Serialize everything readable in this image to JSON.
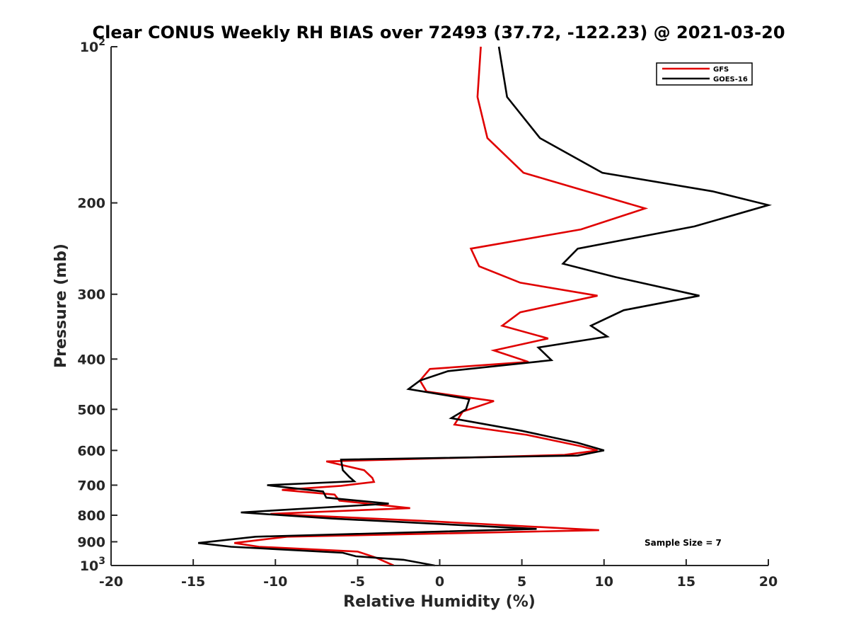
{
  "chart_data": {
    "type": "line",
    "title": "Clear CONUS Weekly RH BIAS over 72493 (37.72, -122.23) @ 2021-03-20",
    "xlabel": "Relative Humidity (%)",
    "ylabel": "Pressure (mb)",
    "xlim": [
      -20,
      20
    ],
    "ylim": [
      1000,
      100
    ],
    "y_scale": "log",
    "y_reversed": true,
    "grid": false,
    "legend_position": "top-right",
    "x_ticks": [
      "-20",
      "-15",
      "-10",
      "-5",
      "0",
      "5",
      "10",
      "15",
      "20"
    ],
    "y_ticks": [
      {
        "value": 100,
        "base": "10",
        "exp": "2"
      },
      {
        "value": 200,
        "label": "200"
      },
      {
        "value": 300,
        "label": "300"
      },
      {
        "value": 400,
        "label": "400"
      },
      {
        "value": 500,
        "label": "500"
      },
      {
        "value": 600,
        "label": "600"
      },
      {
        "value": 700,
        "label": "700"
      },
      {
        "value": 800,
        "label": "800"
      },
      {
        "value": 900,
        "label": "900"
      },
      {
        "value": 1000,
        "base": "10",
        "exp": "3"
      }
    ],
    "annotation": "Sample Size = 7",
    "series": [
      {
        "name": "GFS",
        "color": "#e00000",
        "points": [
          [
            2.5,
            100
          ],
          [
            2.3,
            125
          ],
          [
            2.9,
            150
          ],
          [
            5.1,
            175
          ],
          [
            12.5,
            205
          ],
          [
            8.6,
            225
          ],
          [
            1.9,
            245
          ],
          [
            2.4,
            265
          ],
          [
            4.9,
            285
          ],
          [
            9.6,
            302
          ],
          [
            4.9,
            325
          ],
          [
            3.8,
            345
          ],
          [
            6.6,
            365
          ],
          [
            3.3,
            385
          ],
          [
            5.4,
            405
          ],
          [
            -0.6,
            418
          ],
          [
            -1.2,
            440
          ],
          [
            -0.8,
            462
          ],
          [
            3.3,
            482
          ],
          [
            1.4,
            505
          ],
          [
            0.9,
            535
          ],
          [
            5.3,
            560
          ],
          [
            8.5,
            588
          ],
          [
            9.6,
            600
          ],
          [
            7.6,
            612
          ],
          [
            -6.9,
            630
          ],
          [
            -4.6,
            655
          ],
          [
            -4.1,
            678
          ],
          [
            -4.0,
            690
          ],
          [
            -6.0,
            702
          ],
          [
            -9.6,
            715
          ],
          [
            -6.4,
            730
          ],
          [
            -6.1,
            750
          ],
          [
            -1.8,
            775
          ],
          [
            -10.3,
            795
          ],
          [
            -1.1,
            820
          ],
          [
            9.7,
            855
          ],
          [
            -9.3,
            880
          ],
          [
            -12.5,
            905
          ],
          [
            -11.0,
            920
          ],
          [
            -5.0,
            940
          ],
          [
            -3.9,
            965
          ],
          [
            -2.8,
            1000
          ]
        ]
      },
      {
        "name": "GOES-16",
        "color": "#000000",
        "points": [
          [
            3.6,
            100
          ],
          [
            4.1,
            125
          ],
          [
            6.1,
            150
          ],
          [
            9.9,
            175
          ],
          [
            16.6,
            190
          ],
          [
            20.0,
            202
          ],
          [
            15.5,
            222
          ],
          [
            8.4,
            245
          ],
          [
            7.5,
            262
          ],
          [
            10.7,
            278
          ],
          [
            15.8,
            302
          ],
          [
            11.2,
            322
          ],
          [
            9.2,
            345
          ],
          [
            10.2,
            362
          ],
          [
            6.0,
            380
          ],
          [
            6.8,
            402
          ],
          [
            0.5,
            422
          ],
          [
            -1.2,
            440
          ],
          [
            -1.9,
            457
          ],
          [
            1.8,
            478
          ],
          [
            1.6,
            500
          ],
          [
            0.7,
            520
          ],
          [
            5.0,
            550
          ],
          [
            8.4,
            580
          ],
          [
            10.0,
            600
          ],
          [
            8.4,
            614
          ],
          [
            -6.0,
            625
          ],
          [
            -5.9,
            655
          ],
          [
            -5.5,
            675
          ],
          [
            -5.2,
            688
          ],
          [
            -10.5,
            700
          ],
          [
            -7.1,
            720
          ],
          [
            -6.9,
            740
          ],
          [
            -3.1,
            760
          ],
          [
            -12.1,
            790
          ],
          [
            -6.5,
            812
          ],
          [
            5.9,
            850
          ],
          [
            -11.2,
            880
          ],
          [
            -14.7,
            905
          ],
          [
            -12.7,
            920
          ],
          [
            -5.9,
            945
          ],
          [
            -5.1,
            960
          ],
          [
            -2.2,
            975
          ],
          [
            -0.3,
            1000
          ]
        ]
      }
    ]
  }
}
